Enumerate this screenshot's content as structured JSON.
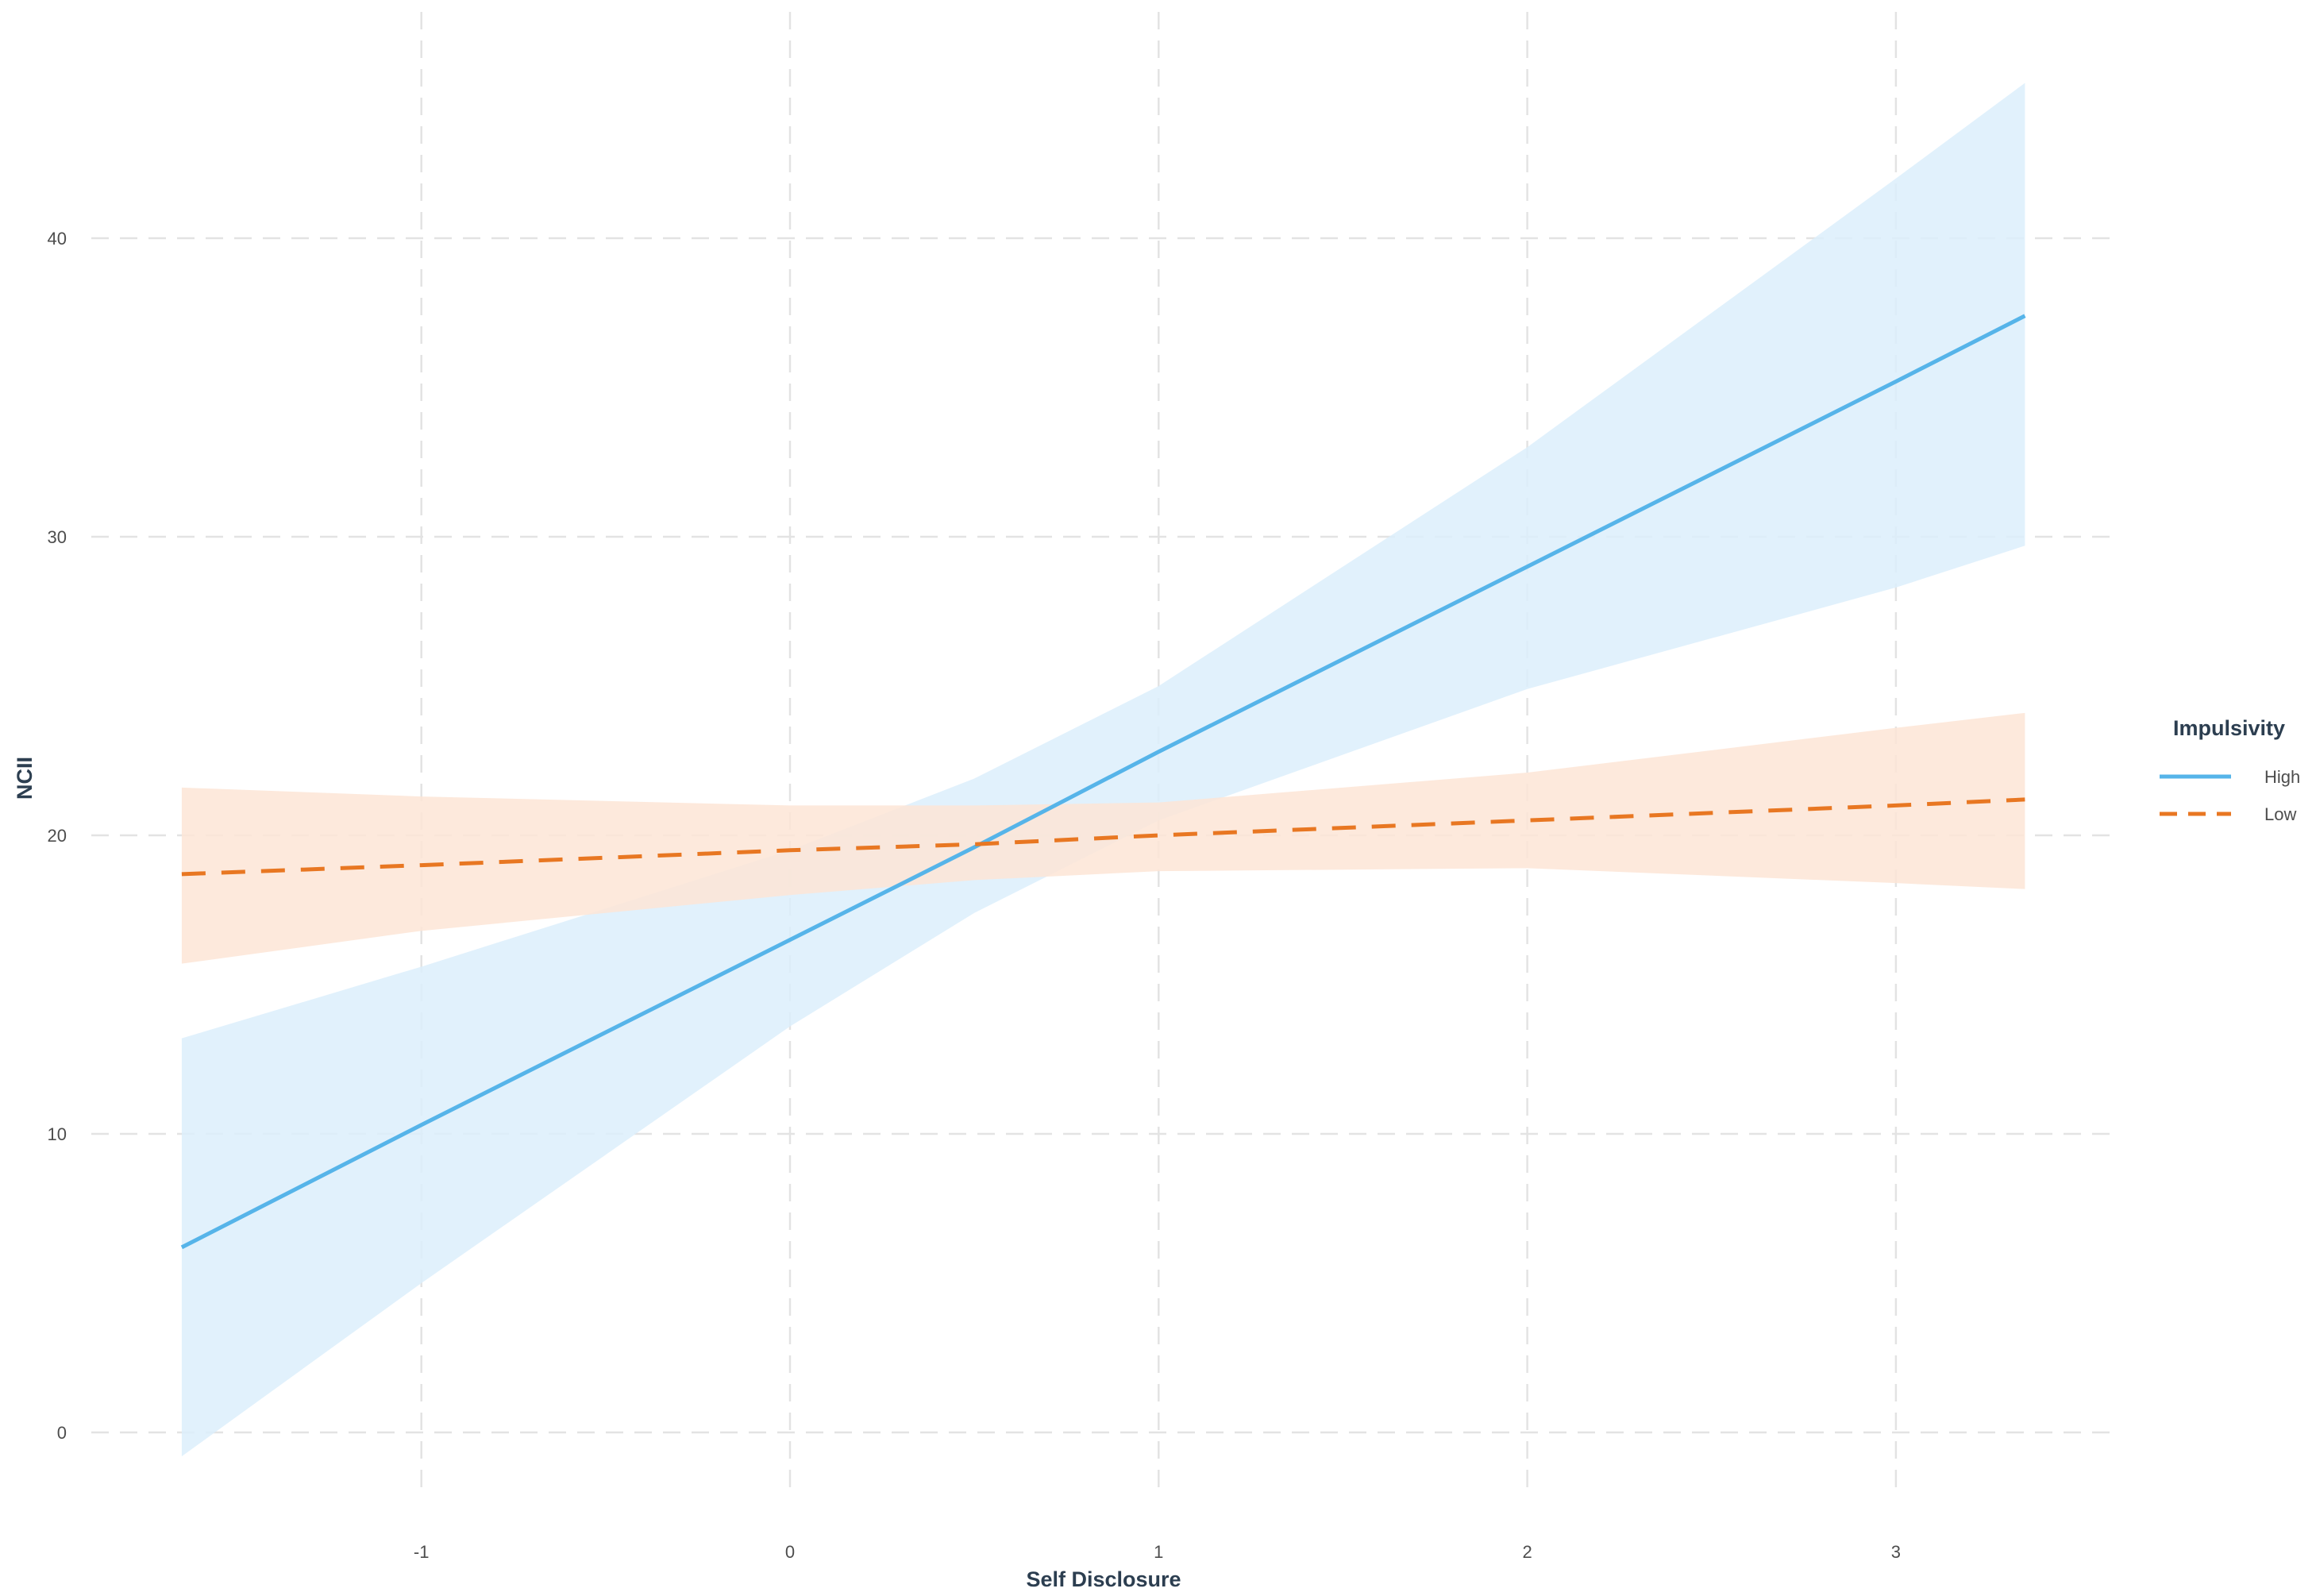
{
  "chart_data": {
    "type": "line",
    "title": "",
    "xlabel": "Self Disclosure",
    "ylabel": "NCII",
    "xlim": [
      -1.65,
      3.35
    ],
    "ylim": [
      -2.5,
      47.5
    ],
    "x_ticks": [
      -1,
      0,
      1,
      2,
      3
    ],
    "x_tick_labels": [
      "-1",
      "0",
      "1",
      "2",
      "3"
    ],
    "y_ticks": [
      0,
      10,
      20,
      30,
      40
    ],
    "y_tick_labels": [
      "0",
      "10",
      "20",
      "30",
      "40"
    ],
    "grid": true,
    "grid_style": "dashed",
    "legend": {
      "title": "Impulsivity",
      "position": "right",
      "entries": [
        {
          "label": "High",
          "linestyle": "solid",
          "color": "#56b4e9"
        },
        {
          "label": "Low",
          "linestyle": "dashed",
          "color": "#e87722"
        }
      ]
    },
    "x": [
      -1.65,
      -1.0,
      0.0,
      0.5,
      1.0,
      2.0,
      3.0,
      3.35
    ],
    "series": [
      {
        "name": "High",
        "color": "#56b4e9",
        "fill": "#dceffc",
        "linestyle": "solid",
        "values": [
          6.2,
          10.3,
          16.5,
          19.6,
          22.8,
          29.0,
          35.2,
          37.4
        ],
        "ci_lower": [
          -0.8,
          5.0,
          13.6,
          17.4,
          20.5,
          24.9,
          28.3,
          29.7
        ],
        "ci_upper": [
          13.2,
          15.6,
          19.5,
          21.9,
          25.0,
          33.0,
          42.0,
          45.2
        ]
      },
      {
        "name": "Low",
        "color": "#e87722",
        "fill": "#fde5d6",
        "linestyle": "dashed",
        "values": [
          18.7,
          19.0,
          19.5,
          19.7,
          20.0,
          20.5,
          21.0,
          21.2
        ],
        "ci_lower": [
          15.7,
          16.8,
          18.0,
          18.5,
          18.8,
          18.9,
          18.4,
          18.2
        ],
        "ci_upper": [
          21.6,
          21.3,
          21.0,
          21.0,
          21.1,
          22.1,
          23.6,
          24.1
        ]
      }
    ]
  },
  "axes": {
    "x_title": "Self Disclosure",
    "y_title": "NCII"
  },
  "legend": {
    "title": "Impulsivity",
    "items": [
      {
        "label": "High"
      },
      {
        "label": "Low"
      }
    ]
  }
}
